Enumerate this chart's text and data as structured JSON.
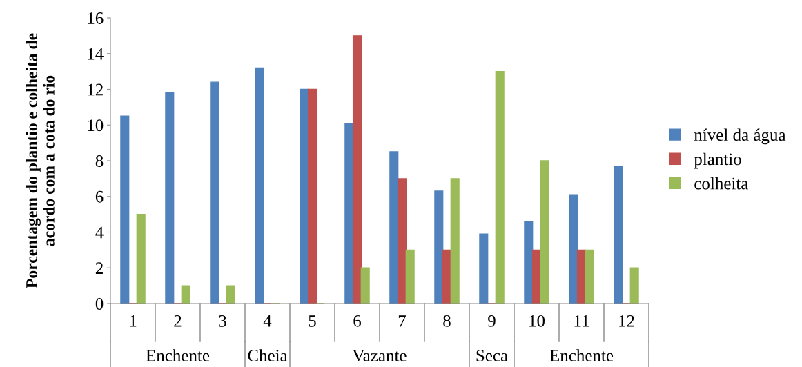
{
  "chart_data": {
    "type": "bar",
    "ylabel": "Porcentagem do plantio e colheita de\nacordo com a cota do rio",
    "categories": [
      "1",
      "2",
      "3",
      "4",
      "5",
      "6",
      "7",
      "8",
      "9",
      "10",
      "11",
      "12"
    ],
    "series": [
      {
        "name": "nível da água",
        "color": "#4f81bd",
        "values": [
          10.5,
          11.8,
          12.4,
          13.2,
          12.0,
          10.1,
          8.5,
          6.3,
          3.9,
          4.6,
          6.1,
          7.7
        ]
      },
      {
        "name": "plantio",
        "color": "#c0504d",
        "values": [
          0,
          0,
          0,
          0,
          12,
          15,
          7,
          3,
          0,
          3,
          3,
          0
        ]
      },
      {
        "name": "colheita",
        "color": "#9bbb59",
        "values": [
          5,
          1,
          1,
          0,
          0,
          2,
          3,
          7,
          13,
          8,
          3,
          2
        ]
      }
    ],
    "annotations": [
      "Enchente",
      "Cheia",
      "Vazante",
      "Seca",
      "Enchente"
    ],
    "ylim": [
      0,
      16
    ],
    "yticks": [
      0,
      2,
      4,
      6,
      8,
      10,
      12,
      14,
      16
    ],
    "legend": "right"
  }
}
